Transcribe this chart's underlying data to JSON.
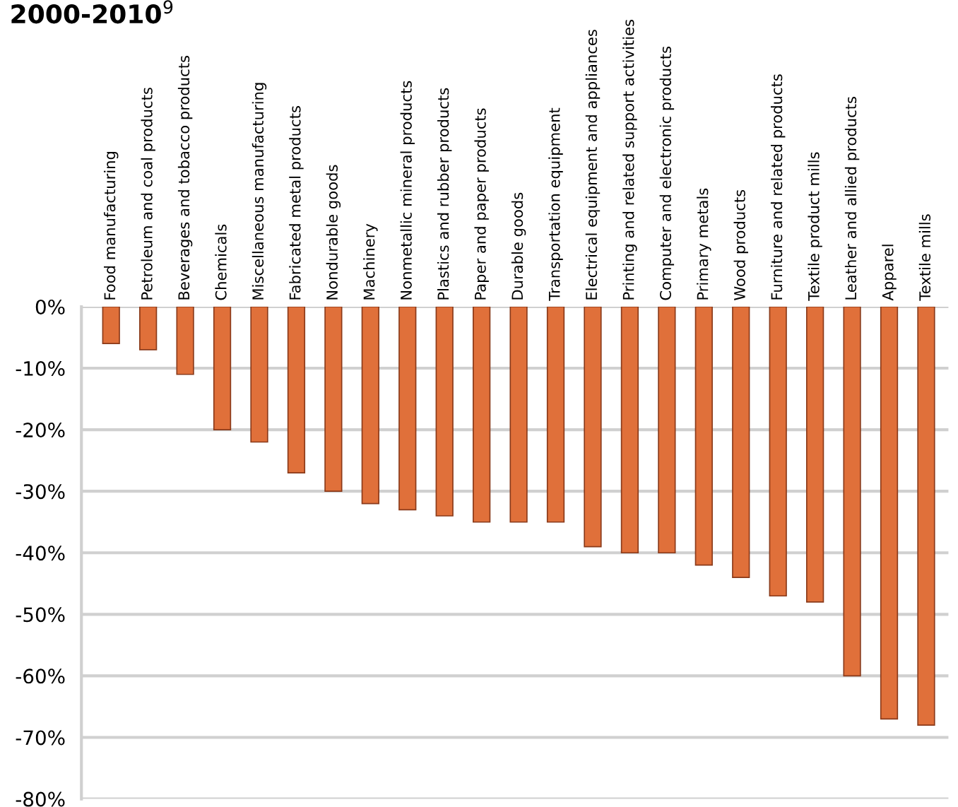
{
  "chart_data": {
    "type": "bar",
    "title": "2000-2010$^{9}$",
    "categories": [
      "Food manufacturing",
      "Petroleum and coal products",
      "Beverages and tobacco products",
      "Chemicals",
      "Miscellaneous manufacturing",
      "Fabricated metal products",
      "Nondurable goods",
      "Machinery",
      "Nonmetallic mineral products",
      "Plastics and rubber products",
      "Paper and paper products",
      "Durable goods",
      "Transportation equipment",
      "Electrical equipment and appliances",
      "Printing and related support activities",
      "Computer and electronic products",
      "Primary metals",
      "Wood products",
      "Furniture and related products",
      "Textile product mills",
      "Leather and allied products",
      "Apparel",
      "Textile mills"
    ],
    "values": [
      -6,
      -7,
      -11,
      -20,
      -22,
      -27,
      -30,
      -32,
      -33,
      -34,
      -35,
      -35,
      -35,
      -39,
      -40,
      -40,
      -42,
      -44,
      -47,
      -48,
      -60,
      -67,
      -68
    ],
    "color": "#e0703a",
    "ylim": [
      -80,
      0
    ],
    "yticks": [
      {
        "value": 0,
        "label": "0%"
      },
      {
        "value": -10,
        "label": "-10%"
      },
      {
        "value": -20,
        "label": "-20%"
      },
      {
        "value": -30,
        "label": "-30%"
      },
      {
        "value": -40,
        "label": "-40%"
      },
      {
        "value": -50,
        "label": "-50%"
      },
      {
        "value": -60,
        "label": "-60%"
      },
      {
        "value": -70,
        "label": "-70%"
      },
      {
        "value": -80,
        "label": "-80%"
      }
    ],
    "grid": "y"
  }
}
